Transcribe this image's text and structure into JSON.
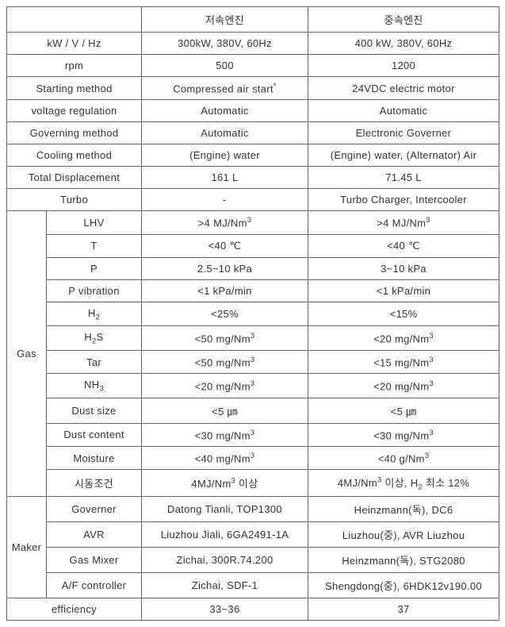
{
  "headers": {
    "low": "저속엔진",
    "mid": "중속엔진"
  },
  "simpleRows": [
    {
      "label": "kW / V / Hz",
      "low": "300kW, 380V, 60Hz",
      "mid": "400 kW, 380V, 60Hz"
    },
    {
      "label": "rpm",
      "low": "500",
      "mid": "1200"
    },
    {
      "label": "Starting method",
      "low": "Compressed air start*",
      "mid": "24VDC electric motor"
    },
    {
      "label": "voltage regulation",
      "low": "Automatic",
      "mid": "Automatic"
    },
    {
      "label": "Governing method",
      "low": "Automatic",
      "mid": "Electronic Governer"
    },
    {
      "label": "Cooling method",
      "low": "(Engine) water",
      "mid": "(Engine) water, (Alternator) Air"
    },
    {
      "label": "Total Displacement",
      "low": "161 L",
      "mid": "71.45 L"
    },
    {
      "label": "Turbo",
      "low": "-",
      "mid": "Turbo Charger, Intercooler"
    }
  ],
  "gas": {
    "label": "Gas",
    "rows": [
      {
        "sub": "LHV",
        "low": ">4 MJ/Nm3",
        "mid": ">4 MJ/Nm3",
        "supLow": true,
        "supMid": true
      },
      {
        "sub": "T",
        "low": "<40 ℃",
        "mid": "<40 ℃"
      },
      {
        "sub": "P",
        "low": "2.5~10 kPa",
        "mid": "3~10 kPa"
      },
      {
        "sub": "P vibration",
        "low": "<1 kPa/min",
        "mid": "<1 kPa/min"
      },
      {
        "sub": "H2",
        "subSub": true,
        "low": "<25%",
        "mid": "<15%"
      },
      {
        "sub": "H2S",
        "subSub": true,
        "low": "<50 mg/Nm3",
        "mid": "<20 mg/Nm3",
        "supLow": true,
        "supMid": true
      },
      {
        "sub": "Tar",
        "low": "<50 mg/Nm3",
        "mid": "<15 mg/Nm3",
        "supLow": true,
        "supMid": true
      },
      {
        "sub": "NH3",
        "subSub": true,
        "low": "<20 mg/Nm3",
        "mid": "<20 mg/Nm3",
        "supLow": true,
        "supMid": true
      },
      {
        "sub": "Dust size",
        "low": "<5 ㎛",
        "mid": "<5 ㎛"
      },
      {
        "sub": "Dust content",
        "low": "<30 mg/Nm3",
        "mid": "<30 mg/Nm3",
        "supLow": true,
        "supMid": true
      },
      {
        "sub": "Moisture",
        "low": "<40 mg/Nm3",
        "mid": "<40 g/Nm3",
        "supLow": true,
        "supMid": true
      },
      {
        "sub": "시동조건",
        "low": "4MJ/Nm3 이상",
        "mid": "4MJ/Nm3 이상, H2 최소 12%",
        "supLow": "custom1",
        "supMid": "custom2"
      }
    ]
  },
  "maker": {
    "label": "Maker",
    "rows": [
      {
        "sub": "Governer",
        "low": "Datong Tianli, TOP1300",
        "mid": "Heinzmann(독), DC6"
      },
      {
        "sub": "AVR",
        "low": "Liuzhou Jiali, 6GA2491-1A",
        "mid": "Liuzhou(중), AVR Liuzhou"
      },
      {
        "sub": "Gas Mixer",
        "low": "Zichai, 300R.74.200",
        "mid": "Heinzmann(독), STG2080"
      },
      {
        "sub": "A/F controller",
        "low": "Zichai, SDF-1",
        "mid": "Shengdong(중), 6HDK12v190.00"
      }
    ]
  },
  "efficiency": {
    "label": "efficiency",
    "low": "33~36",
    "mid": "37"
  }
}
